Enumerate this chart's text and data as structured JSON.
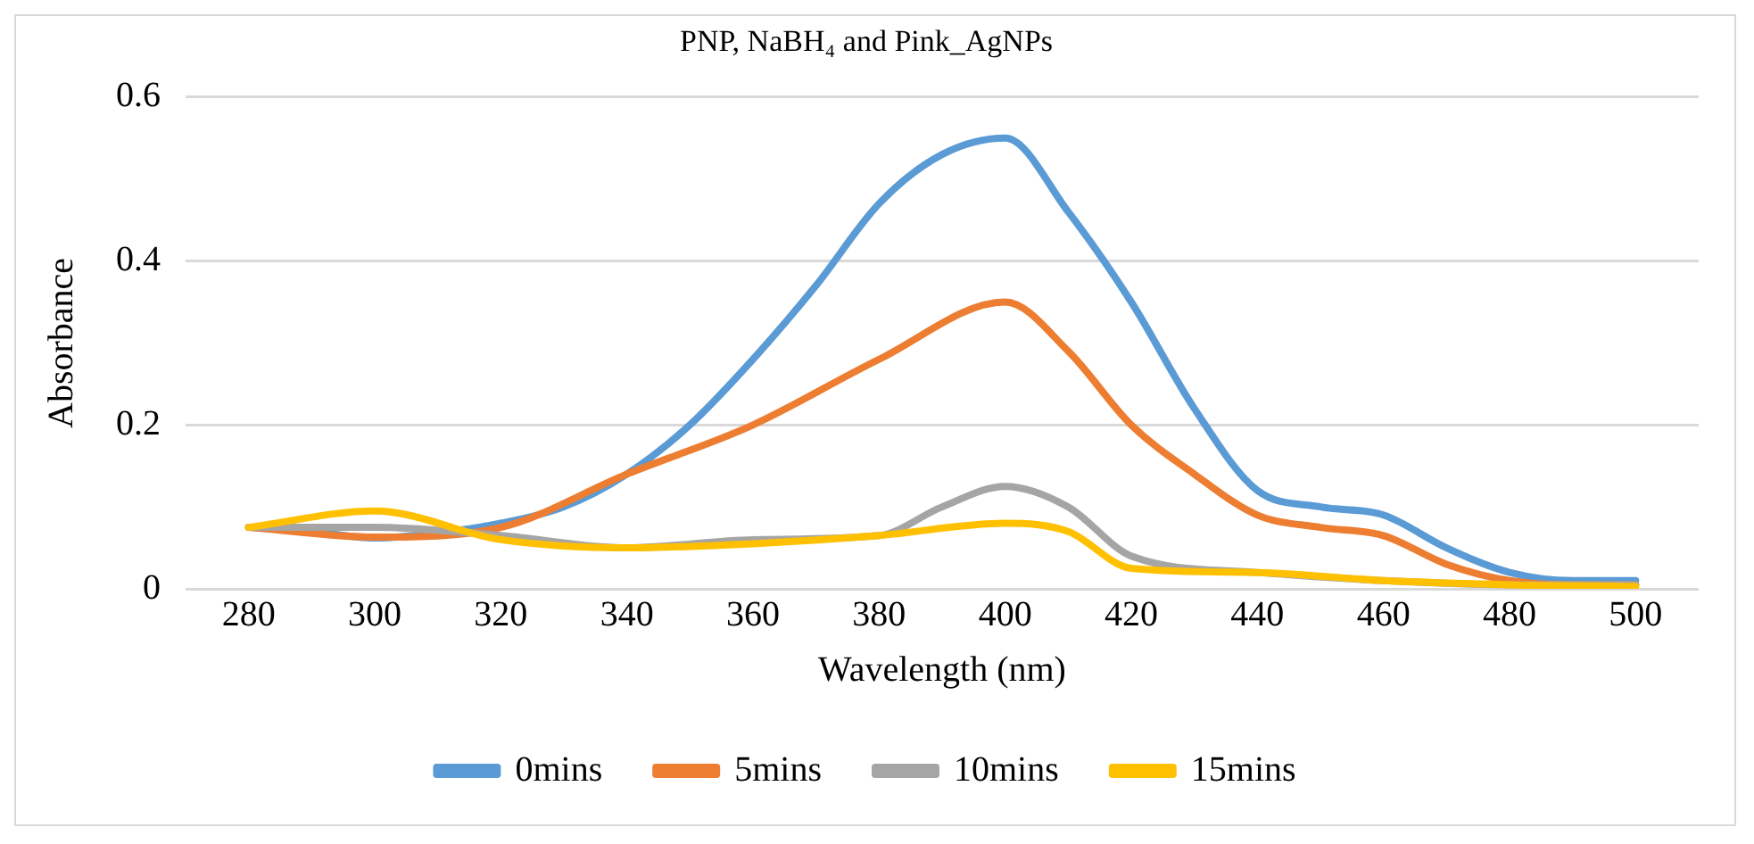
{
  "chart_data": {
    "type": "line",
    "title": "PNP, NaBH₄ and Pink_AgNPs",
    "xlabel": "Wavelength (nm)",
    "ylabel": "Absorbance",
    "xlim": [
      270,
      510
    ],
    "xticks": [
      280,
      300,
      320,
      340,
      360,
      380,
      400,
      420,
      440,
      460,
      480,
      500
    ],
    "ylim": [
      0,
      0.6
    ],
    "yticks": [
      0,
      0.2,
      0.4,
      0.6
    ],
    "grid": "y",
    "legend": "bottom",
    "marker": "none",
    "series": [
      {
        "name": "0mins",
        "color": "#5b9bd5",
        "x": [
          280,
          290,
          300,
          310,
          320,
          330,
          340,
          350,
          360,
          370,
          380,
          390,
          400,
          410,
          420,
          430,
          440,
          450,
          460,
          470,
          480,
          490,
          500
        ],
        "values": [
          0.075,
          0.07,
          0.062,
          0.068,
          0.08,
          0.1,
          0.14,
          0.2,
          0.28,
          0.37,
          0.47,
          0.53,
          0.55,
          0.46,
          0.35,
          0.22,
          0.12,
          0.1,
          0.09,
          0.05,
          0.02,
          0.01,
          0.01
        ]
      },
      {
        "name": "5mins",
        "color": "#ed7d31",
        "x": [
          280,
          300,
          320,
          340,
          360,
          380,
          400,
          410,
          420,
          430,
          440,
          450,
          460,
          470,
          480,
          490,
          500
        ],
        "values": [
          0.075,
          0.063,
          0.075,
          0.14,
          0.2,
          0.28,
          0.35,
          0.29,
          0.2,
          0.14,
          0.09,
          0.075,
          0.065,
          0.03,
          0.01,
          0.005,
          0.005
        ]
      },
      {
        "name": "10mins",
        "color": "#a5a5a5",
        "x": [
          280,
          300,
          320,
          340,
          360,
          380,
          390,
          400,
          410,
          420,
          440,
          460,
          480,
          500
        ],
        "values": [
          0.075,
          0.075,
          0.065,
          0.05,
          0.06,
          0.065,
          0.1,
          0.125,
          0.1,
          0.04,
          0.02,
          0.01,
          0.005,
          0.005
        ]
      },
      {
        "name": "15mins",
        "color": "#ffc000",
        "x": [
          280,
          300,
          320,
          340,
          360,
          380,
          400,
          410,
          420,
          440,
          460,
          480,
          500
        ],
        "values": [
          0.075,
          0.095,
          0.06,
          0.05,
          0.055,
          0.065,
          0.08,
          0.07,
          0.025,
          0.02,
          0.01,
          0.005,
          0.003
        ]
      }
    ]
  }
}
